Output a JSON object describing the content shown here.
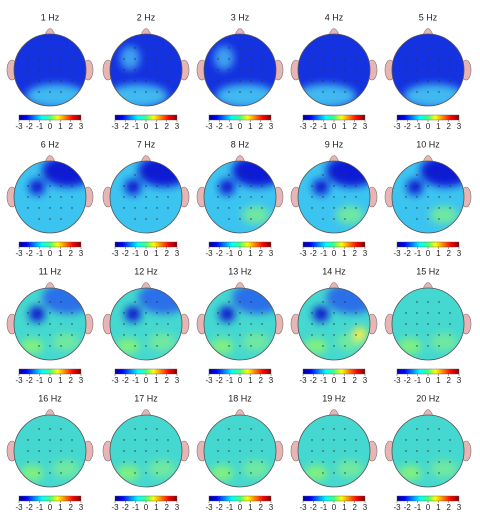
{
  "figure": {
    "type": "topomap",
    "maps": [
      {
        "title": "1 Hz"
      },
      {
        "title": "2 Hz"
      },
      {
        "title": "3 Hz"
      },
      {
        "title": "4 Hz"
      },
      {
        "title": "5 Hz"
      },
      {
        "title": "6 Hz"
      },
      {
        "title": "7 Hz"
      },
      {
        "title": "8 Hz"
      },
      {
        "title": "9 Hz"
      },
      {
        "title": "10 Hz"
      },
      {
        "title": "11 Hz"
      },
      {
        "title": "12 Hz"
      },
      {
        "title": "13 Hz"
      },
      {
        "title": "14 Hz"
      },
      {
        "title": "15 Hz"
      },
      {
        "title": "16 Hz"
      },
      {
        "title": "17 Hz"
      },
      {
        "title": "18 Hz"
      },
      {
        "title": "19 Hz"
      },
      {
        "title": "20 Hz"
      }
    ],
    "colorbar": {
      "lim": [
        -3,
        3
      ],
      "ticks": [
        -3,
        -2,
        -1,
        0,
        1,
        2,
        3
      ]
    }
  }
}
